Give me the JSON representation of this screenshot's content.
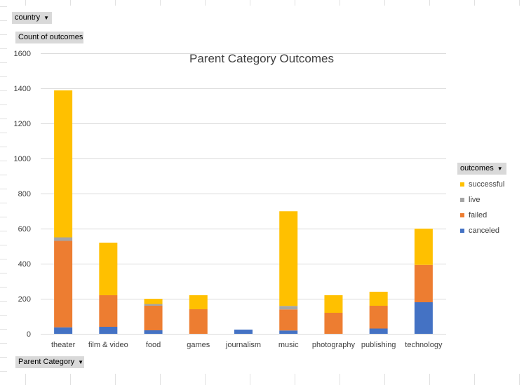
{
  "filters": {
    "country_label": "country",
    "values_label": "Count of outcomes",
    "axis_field_label": "Parent Category",
    "legend_field_label": "outcomes"
  },
  "icons": {
    "dropdown": "dropdown-arrow-icon"
  },
  "colors": {
    "canceled": "#4472c4",
    "failed": "#ed7d31",
    "live": "#a5a5a5",
    "successful": "#ffc000",
    "gridline": "#d9d9d9",
    "field_button": "#d9d9d9"
  },
  "chart_data": {
    "type": "bar",
    "stacked": true,
    "title": "Parent Category Outcomes",
    "xlabel": "",
    "ylabel": "",
    "ylim": [
      0,
      1600
    ],
    "yticks": [
      0,
      200,
      400,
      600,
      800,
      1000,
      1200,
      1400,
      1600
    ],
    "grid": true,
    "legend_position": "right",
    "categories": [
      "theater",
      "film & video",
      "food",
      "games",
      "journalism",
      "music",
      "photography",
      "publishing",
      "technology"
    ],
    "series": [
      {
        "name": "canceled",
        "values": [
          37,
          40,
          20,
          0,
          24,
          19,
          0,
          30,
          180
        ]
      },
      {
        "name": "failed",
        "values": [
          493,
          180,
          140,
          140,
          0,
          120,
          120,
          130,
          213
        ]
      },
      {
        "name": "live",
        "values": [
          20,
          0,
          10,
          0,
          0,
          20,
          0,
          0,
          0
        ]
      },
      {
        "name": "successful",
        "values": [
          839,
          300,
          30,
          80,
          0,
          540,
          100,
          80,
          207
        ]
      }
    ]
  }
}
